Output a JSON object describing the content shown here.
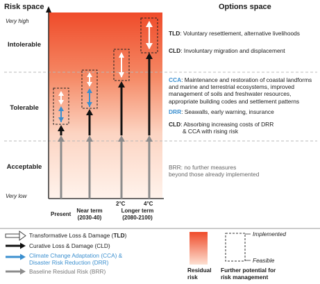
{
  "headers": {
    "risk_space": "Risk space",
    "options_space": "Options space"
  },
  "axis": {
    "top": "Very high",
    "bottom": "Very low"
  },
  "zones": {
    "intolerable": "Intolerable",
    "tolerable": "Tolerable",
    "acceptable": "Acceptable"
  },
  "x_labels": {
    "present": "Present",
    "near_term": "Near term",
    "near_term_years": "(2030-40)",
    "two_deg": "2°C",
    "four_deg": "4°C",
    "longer_term": "Longer term",
    "longer_term_years": "(2080-2100)"
  },
  "options": {
    "tld_abbr": "TLD",
    "tld_text": ": Voluntary resettlement, alternative livelihoods",
    "cld_abbr": "CLD",
    "cld_text": ": Involuntary migration and displacement",
    "cca_abbr": "CCA",
    "cca_line1": ": Maintenance and restoration of coastal landforms",
    "cca_line2": "and marine and terrestrial ecosystems, improved",
    "cca_line3": "management of soils and freshwater resources,",
    "cca_line4": "appropriate building codes and settlement patterns",
    "drr_abbr": "DRR",
    "drr_text": ": Seawalls, early warning, insurance",
    "cld2_abbr": "CLD",
    "cld2_line1": ": Absorbing increasing costs of DRR",
    "cld2_line2": "& CCA with rising risk",
    "brr_line1": "BRR: no further measures",
    "brr_line2": "beyond those already implemented"
  },
  "legend": {
    "tld_prefix": "Transformative Loss & Damage (",
    "tld_abbr": "TLD",
    "tld_suffix": ")",
    "cld": "Curative Loss & Damage (CLD)",
    "cca_line1": "Climate Change Adaptation (CCA) &",
    "cca_line2": "Disaster Risk Reduction (DRR)",
    "brr": "Baseline Residual Risk (BRR)",
    "residual_line1": "Residual",
    "residual_line2": "risk",
    "implemented": "Implemented",
    "feasible": "Feasible",
    "further_line1": "Further potential for",
    "further_line2": "risk management"
  },
  "colors": {
    "risk_gradient_top": "#ef4b2a",
    "risk_gradient_bottom": "#fff0e8",
    "cca_blue": "#3b8fcf",
    "cld_black": "#111111",
    "brr_grey": "#8c8c8c"
  }
}
